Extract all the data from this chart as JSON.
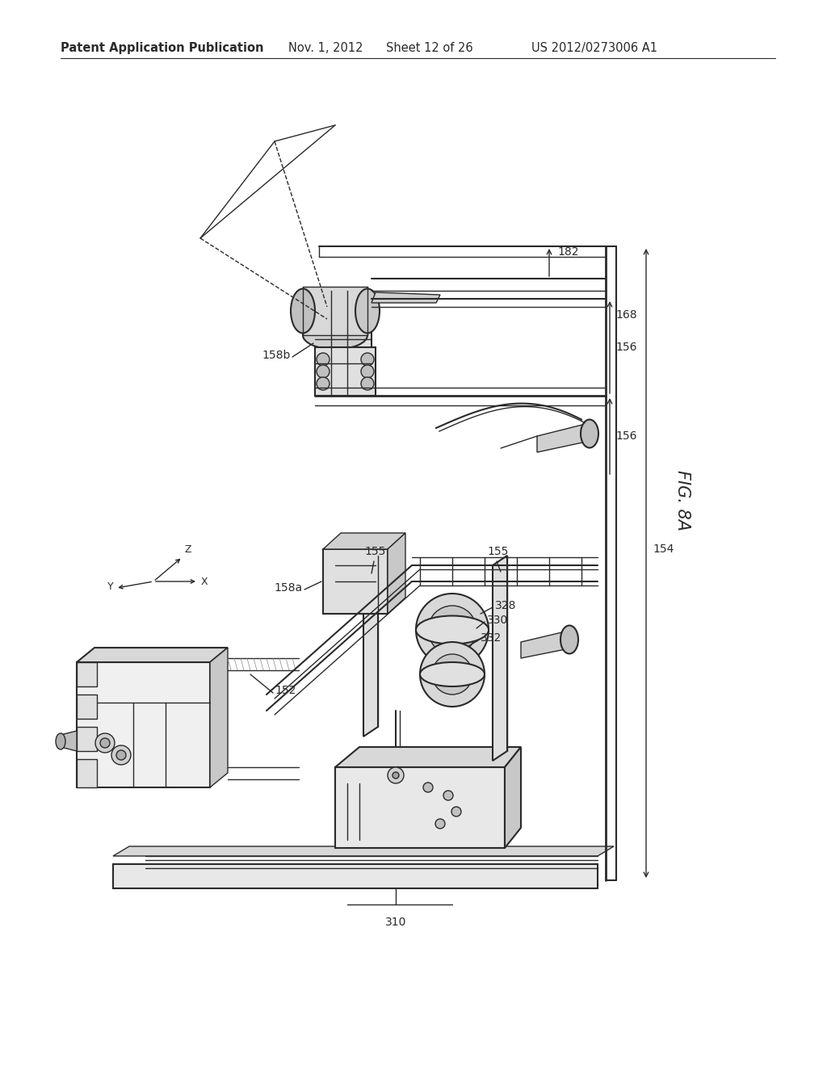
{
  "title": "Patent Application Publication",
  "date": "Nov. 1, 2012",
  "sheet": "Sheet 12 of 26",
  "patent_num": "US 2012/0273006 A1",
  "fig_label": "FIG. 8A",
  "background_color": "#ffffff",
  "line_color": "#2a2a2a",
  "header_fontsize": 10.5,
  "label_fontsize": 10,
  "fig_fontsize": 15
}
